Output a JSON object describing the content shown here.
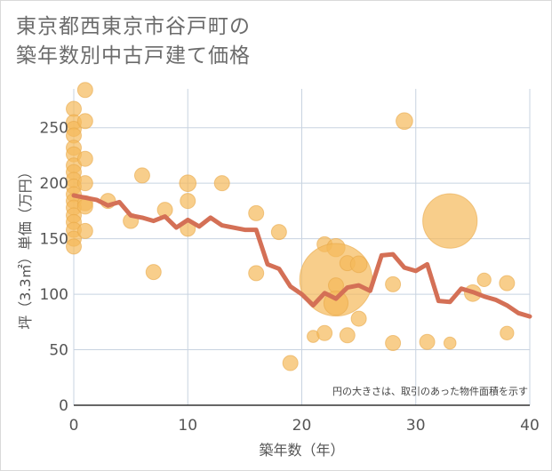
{
  "title": {
    "line1": "東京都西東京市谷戸町の",
    "line2": "築年数別中古戸建て価格"
  },
  "colors": {
    "bubble": "#f5b95a",
    "bubble_stroke": "#e8a84a",
    "line": "#d47056",
    "grid": "#c8d3e0",
    "text": "#555555"
  },
  "chart_data": {
    "type": "scatter",
    "xlabel": "築年数（年）",
    "ylabel": "坪（3.3㎡）単価（万円）",
    "xlim": [
      0,
      40
    ],
    "ylim": [
      0,
      285
    ],
    "xticks": [
      0,
      10,
      20,
      30,
      40
    ],
    "yticks": [
      0,
      50,
      100,
      150,
      200,
      250
    ],
    "grid": true,
    "note": "円の大きさは、取引のあった物件面積を示す",
    "bubbles": [
      {
        "x": 0,
        "y": 267,
        "s": 1
      },
      {
        "x": 0,
        "y": 255,
        "s": 1
      },
      {
        "x": 0,
        "y": 249,
        "s": 1
      },
      {
        "x": 0,
        "y": 243,
        "s": 1
      },
      {
        "x": 0,
        "y": 232,
        "s": 1
      },
      {
        "x": 0,
        "y": 226,
        "s": 1
      },
      {
        "x": 0,
        "y": 216,
        "s": 1
      },
      {
        "x": 0,
        "y": 210,
        "s": 1
      },
      {
        "x": 0,
        "y": 203,
        "s": 1
      },
      {
        "x": 0,
        "y": 197,
        "s": 1
      },
      {
        "x": 0,
        "y": 190,
        "s": 1
      },
      {
        "x": 0,
        "y": 184,
        "s": 1
      },
      {
        "x": 0,
        "y": 178,
        "s": 1
      },
      {
        "x": 0,
        "y": 171,
        "s": 1
      },
      {
        "x": 0,
        "y": 165,
        "s": 1
      },
      {
        "x": 0,
        "y": 158,
        "s": 1
      },
      {
        "x": 0,
        "y": 150,
        "s": 1
      },
      {
        "x": 0,
        "y": 143,
        "s": 1
      },
      {
        "x": 1,
        "y": 284,
        "s": 1
      },
      {
        "x": 1,
        "y": 256,
        "s": 1
      },
      {
        "x": 1,
        "y": 222,
        "s": 1
      },
      {
        "x": 1,
        "y": 200,
        "s": 1
      },
      {
        "x": 1,
        "y": 182,
        "s": 1
      },
      {
        "x": 1,
        "y": 179,
        "s": 1
      },
      {
        "x": 1,
        "y": 157,
        "s": 1
      },
      {
        "x": 3,
        "y": 184,
        "s": 1
      },
      {
        "x": 5,
        "y": 166,
        "s": 1
      },
      {
        "x": 6,
        "y": 207,
        "s": 1
      },
      {
        "x": 7,
        "y": 120,
        "s": 1
      },
      {
        "x": 8,
        "y": 176,
        "s": 1
      },
      {
        "x": 10,
        "y": 200,
        "s": 1.1
      },
      {
        "x": 10,
        "y": 184,
        "s": 1
      },
      {
        "x": 10,
        "y": 159,
        "s": 1
      },
      {
        "x": 13,
        "y": 200,
        "s": 1
      },
      {
        "x": 16,
        "y": 173,
        "s": 1
      },
      {
        "x": 16,
        "y": 119,
        "s": 1
      },
      {
        "x": 18,
        "y": 156,
        "s": 1
      },
      {
        "x": 19,
        "y": 38,
        "s": 1
      },
      {
        "x": 21,
        "y": 62,
        "s": 0.8
      },
      {
        "x": 22,
        "y": 65,
        "s": 1
      },
      {
        "x": 22,
        "y": 145,
        "s": 1
      },
      {
        "x": 23,
        "y": 142,
        "s": 1.2
      },
      {
        "x": 23,
        "y": 113,
        "s": 4.8
      },
      {
        "x": 23,
        "y": 108,
        "s": 1
      },
      {
        "x": 23,
        "y": 92,
        "s": 1.6
      },
      {
        "x": 24,
        "y": 128,
        "s": 1
      },
      {
        "x": 24,
        "y": 63,
        "s": 1
      },
      {
        "x": 25,
        "y": 127,
        "s": 1.1
      },
      {
        "x": 25,
        "y": 78,
        "s": 1
      },
      {
        "x": 28,
        "y": 109,
        "s": 1
      },
      {
        "x": 28,
        "y": 56,
        "s": 1
      },
      {
        "x": 29,
        "y": 256,
        "s": 1.1
      },
      {
        "x": 31,
        "y": 57,
        "s": 1
      },
      {
        "x": 33,
        "y": 166,
        "s": 3.6
      },
      {
        "x": 33,
        "y": 56,
        "s": 0.8
      },
      {
        "x": 35,
        "y": 101,
        "s": 1.1
      },
      {
        "x": 36,
        "y": 113,
        "s": 0.9
      },
      {
        "x": 38,
        "y": 110,
        "s": 1
      },
      {
        "x": 38,
        "y": 65,
        "s": 0.9
      }
    ],
    "line": {
      "x": [
        0,
        1,
        2,
        3,
        4,
        5,
        6,
        7,
        8,
        9,
        10,
        11,
        12,
        13,
        14,
        15,
        16,
        17,
        18,
        19,
        20,
        21,
        22,
        23,
        24,
        25,
        26,
        27,
        28,
        29,
        30,
        31,
        32,
        33,
        34,
        35,
        36,
        37,
        38,
        39,
        40
      ],
      "y": [
        189,
        187,
        185,
        180,
        183,
        171,
        169,
        166,
        170,
        160,
        167,
        161,
        169,
        162,
        160,
        158,
        158,
        127,
        123,
        107,
        100,
        90,
        101,
        96,
        106,
        108,
        103,
        135,
        136,
        124,
        121,
        127,
        94,
        93,
        105,
        102,
        98,
        95,
        90,
        83,
        80
      ]
    }
  }
}
